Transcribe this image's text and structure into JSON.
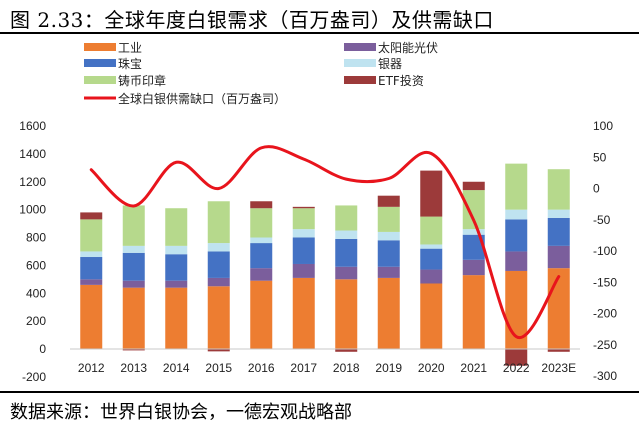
{
  "figure": {
    "title": "图 2.33：全球年度白银需求（百万盎司）及供需缺口",
    "source": "数据来源：世界白银协会，一德宏观战略部"
  },
  "chart_data": {
    "type": "bar",
    "stacked": true,
    "categories": [
      "2012",
      "2013",
      "2014",
      "2015",
      "2016",
      "2017",
      "2018",
      "2019",
      "2020",
      "2021",
      "2022",
      "2023E"
    ],
    "left_axis": {
      "ylim": [
        -200,
        1600
      ],
      "ticks": [
        "-200",
        "0",
        "200",
        "400",
        "600",
        "800",
        "1000",
        "1200",
        "1400",
        "1600"
      ]
    },
    "right_axis": {
      "ylim": [
        -300,
        100
      ],
      "ticks": [
        "-300",
        "-250",
        "-200",
        "-150",
        "-100",
        "-50",
        "0",
        "50",
        "100"
      ]
    },
    "grid": false,
    "legend_position": "top",
    "series": [
      {
        "name": "工业",
        "kind": "bar",
        "color": "#ed7d31",
        "values": [
          460,
          440,
          440,
          450,
          490,
          510,
          500,
          510,
          470,
          530,
          560,
          580
        ]
      },
      {
        "name": "太阳能光伏",
        "kind": "bar",
        "color": "#7b5e9c",
        "values": [
          40,
          50,
          50,
          60,
          90,
          100,
          90,
          80,
          100,
          110,
          140,
          160
        ]
      },
      {
        "name": "珠宝",
        "kind": "bar",
        "color": "#4472c4",
        "values": [
          160,
          200,
          190,
          190,
          180,
          190,
          200,
          190,
          150,
          180,
          230,
          200
        ]
      },
      {
        "name": "银器",
        "kind": "bar",
        "color": "#bfe3f0",
        "values": [
          40,
          50,
          60,
          60,
          40,
          60,
          60,
          60,
          30,
          40,
          70,
          60
        ]
      },
      {
        "name": "铸币印章",
        "kind": "bar",
        "color": "#b6d98c",
        "values": [
          230,
          290,
          270,
          300,
          210,
          150,
          180,
          180,
          200,
          280,
          330,
          290
        ]
      },
      {
        "name": "ETF投资",
        "kind": "bar",
        "color": "#9c3a3a",
        "values": [
          50,
          -10,
          0,
          -17,
          50,
          10,
          -20,
          80,
          330,
          60,
          -120,
          -20
        ]
      },
      {
        "name": "全球白银供需缺口（百万盎司）",
        "kind": "line",
        "axis": "right",
        "color": "#e8141c",
        "values": [
          30,
          -28,
          42,
          0,
          65,
          47,
          15,
          16,
          56,
          -51,
          -237,
          -141
        ]
      }
    ]
  },
  "legend": {
    "items": [
      {
        "label": "工业",
        "swatch": "bar",
        "color": "#ed7d31"
      },
      {
        "label": "太阳能光伏",
        "swatch": "bar",
        "color": "#7b5e9c"
      },
      {
        "label": "珠宝",
        "swatch": "bar",
        "color": "#4472c4"
      },
      {
        "label": "银器",
        "swatch": "bar",
        "color": "#bfe3f0"
      },
      {
        "label": "铸币印章",
        "swatch": "bar",
        "color": "#b6d98c"
      },
      {
        "label": "ETF投资",
        "swatch": "bar",
        "color": "#9c3a3a"
      },
      {
        "label": "全球白银供需缺口（百万盎司）",
        "swatch": "line",
        "color": "#e8141c"
      }
    ]
  }
}
